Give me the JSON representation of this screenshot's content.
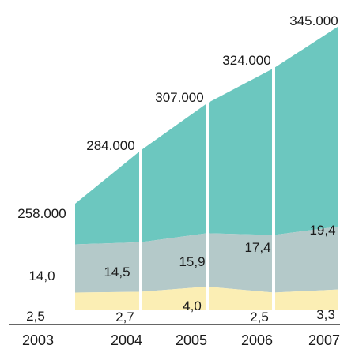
{
  "chart_data": {
    "type": "area",
    "categories": [
      "2003",
      "2004",
      "2005",
      "2006",
      "2007"
    ],
    "series": [
      {
        "values": [
          258000,
          284000,
          307000,
          324000,
          345000
        ],
        "labels": [
          "258.000",
          "284.000",
          "307.000",
          "324.000",
          "345.000"
        ]
      },
      {
        "values": [
          14.0,
          14.5,
          15.9,
          17.4,
          19.4
        ],
        "labels": [
          "14,0",
          "14,5",
          "15,9",
          "17,4",
          "19,4"
        ]
      },
      {
        "values": [
          2.5,
          2.7,
          4.0,
          2.5,
          3.3
        ],
        "labels": [
          "2,5",
          "2,7",
          "4,0",
          "2,5",
          "3,3"
        ]
      }
    ],
    "colors": {
      "top": "#6cc7bf",
      "middle": "#b4c9c9",
      "bottom": "#fbeeb4",
      "axis": "#333333"
    },
    "grid": false
  }
}
